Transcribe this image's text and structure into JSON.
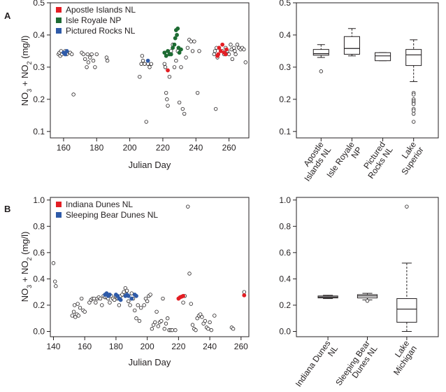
{
  "colors": {
    "apostle": "#e31e24",
    "isle": "#1d6b32",
    "pictured": "#2e5aa8",
    "indiana": "#e31e24",
    "sleeping": "#2e5aa8",
    "other": "#ffffff",
    "outline": "#231f20"
  },
  "panels": {
    "a_label": "A",
    "b_label": "B"
  },
  "chart_data": [
    {
      "id": "A-scatter",
      "type": "scatter",
      "title": "",
      "xlabel": "Julian Day",
      "ylabel_parts": {
        "main": "NO",
        "sub1": "3",
        "mid": " + NO",
        "sub2": "2",
        "unit": " (mg/l)"
      },
      "xlim": [
        152,
        272
      ],
      "ylim": [
        0.08,
        0.5
      ],
      "xticks": [
        160,
        180,
        200,
        220,
        240,
        260
      ],
      "yticks": [
        0.1,
        0.2,
        0.3,
        0.4,
        0.5
      ],
      "legend": [
        "Apostle Islands NL",
        "Isle Royale NP",
        "Pictured Rocks NL"
      ],
      "legend_colors": [
        "#e31e24",
        "#1d6b32",
        "#2e5aa8"
      ],
      "series": [
        {
          "name": "Lake Superior",
          "color": "#ffffff",
          "points": [
            [
              157,
              0.34
            ],
            [
              157.5,
              0.345
            ],
            [
              158,
              0.335
            ],
            [
              158.5,
              0.35
            ],
            [
              159,
              0.34
            ],
            [
              160,
              0.345
            ],
            [
              161,
              0.35
            ],
            [
              162,
              0.34
            ],
            [
              164,
              0.345
            ],
            [
              165,
              0.34
            ],
            [
              166,
              0.215
            ],
            [
              171,
              0.345
            ],
            [
              172,
              0.34
            ],
            [
              173,
              0.325
            ],
            [
              174,
              0.3
            ],
            [
              174.5,
              0.34
            ],
            [
              175,
              0.315
            ],
            [
              176,
              0.33
            ],
            [
              177,
              0.34
            ],
            [
              178,
              0.32
            ],
            [
              179,
              0.3
            ],
            [
              180,
              0.34
            ],
            [
              186,
              0.33
            ],
            [
              186.5,
              0.32
            ],
            [
              206,
              0.27
            ],
            [
              207,
              0.31
            ],
            [
              207.5,
              0.335
            ],
            [
              208,
              0.32
            ],
            [
              209,
              0.31
            ],
            [
              210,
              0.13
            ],
            [
              211,
              0.31
            ],
            [
              212,
              0.3
            ],
            [
              213,
              0.31
            ],
            [
              221,
              0.31
            ],
            [
              221.5,
              0.3
            ],
            [
              222,
              0.22
            ],
            [
              222.5,
              0.2
            ],
            [
              223,
              0.18
            ],
            [
              224,
              0.27
            ],
            [
              225,
              0.35
            ],
            [
              226,
              0.37
            ],
            [
              227,
              0.3
            ],
            [
              228,
              0.32
            ],
            [
              229,
              0.35
            ],
            [
              230,
              0.19
            ],
            [
              231,
              0.3
            ],
            [
              232,
              0.17
            ],
            [
              233,
              0.155
            ],
            [
              234,
              0.33
            ],
            [
              235,
              0.36
            ],
            [
              236,
              0.385
            ],
            [
              237,
              0.38
            ],
            [
              238,
              0.35
            ],
            [
              239,
              0.38
            ],
            [
              241,
              0.22
            ],
            [
              242,
              0.35
            ],
            [
              251,
              0.34
            ],
            [
              251.5,
              0.35
            ],
            [
              252,
              0.17
            ],
            [
              252.5,
              0.36
            ],
            [
              253,
              0.33
            ],
            [
              256,
              0.35
            ],
            [
              257,
              0.34
            ],
            [
              258,
              0.36
            ],
            [
              259,
              0.35
            ],
            [
              260,
              0.34
            ],
            [
              261,
              0.37
            ],
            [
              261.5,
              0.355
            ],
            [
              262,
              0.325
            ],
            [
              263,
              0.36
            ],
            [
              263.5,
              0.35
            ],
            [
              264,
              0.34
            ],
            [
              265,
              0.37
            ],
            [
              266,
              0.36
            ],
            [
              267,
              0.355
            ],
            [
              268,
              0.36
            ],
            [
              269,
              0.355
            ],
            [
              270,
              0.315
            ]
          ]
        },
        {
          "name": "Apostle Islands NL",
          "color": "#e31e24",
          "points": [
            [
              223,
              0.29
            ],
            [
              253,
              0.335
            ],
            [
              253.5,
              0.34
            ],
            [
              254,
              0.36
            ],
            [
              255,
              0.35
            ],
            [
              256,
              0.37
            ],
            [
              257,
              0.345
            ],
            [
              258,
              0.34
            ],
            [
              258.5,
              0.355
            ]
          ]
        },
        {
          "name": "Isle Royale NP",
          "color": "#1d6b32",
          "points": [
            [
              221,
              0.345
            ],
            [
              222,
              0.335
            ],
            [
              223,
              0.35
            ],
            [
              224,
              0.34
            ],
            [
              225,
              0.34
            ],
            [
              226,
              0.36
            ],
            [
              227,
              0.37
            ],
            [
              227.5,
              0.39
            ],
            [
              228,
              0.415
            ],
            [
              228.5,
              0.4
            ],
            [
              229,
              0.42
            ],
            [
              229.5,
              0.36
            ],
            [
              230,
              0.345
            ],
            [
              231,
              0.355
            ]
          ]
        },
        {
          "name": "Pictured Rocks NL",
          "color": "#2e5aa8",
          "points": [
            [
              160,
              0.345
            ],
            [
              161,
              0.34
            ],
            [
              162,
              0.35
            ],
            [
              211,
              0.32
            ]
          ]
        }
      ]
    },
    {
      "id": "A-box",
      "type": "box",
      "ylim": [
        0.08,
        0.5
      ],
      "yticks": [
        0.1,
        0.2,
        0.3,
        0.4,
        0.5
      ],
      "categories": [
        [
          "Apostle",
          "Islands NL"
        ],
        [
          "Isle Royale",
          "NP"
        ],
        [
          "Pictured",
          "Rocks NL"
        ],
        [
          "Lake",
          "Superior"
        ]
      ],
      "boxes": [
        {
          "min": 0.33,
          "q1": 0.337,
          "median": 0.342,
          "q3": 0.355,
          "max": 0.37,
          "outliers": [
            0.287
          ]
        },
        {
          "min": 0.335,
          "q1": 0.34,
          "median": 0.358,
          "q3": 0.395,
          "max": 0.42,
          "outliers": []
        },
        {
          "min": 0.32,
          "q1": 0.32,
          "median": 0.335,
          "q3": 0.345,
          "max": 0.345,
          "outliers": []
        },
        {
          "min": 0.255,
          "q1": 0.305,
          "median": 0.338,
          "q3": 0.355,
          "max": 0.385,
          "outliers": [
            0.22,
            0.215,
            0.2,
            0.195,
            0.19,
            0.185,
            0.17,
            0.165,
            0.155,
            0.13
          ]
        }
      ]
    },
    {
      "id": "B-scatter",
      "type": "scatter",
      "title": "",
      "xlabel": "Julian Day",
      "ylabel_parts": {
        "main": "NO",
        "sub1": "3",
        "mid": " + NO",
        "sub2": "2",
        "unit": " (mg/l)"
      },
      "xlim": [
        138,
        265
      ],
      "ylim": [
        -0.04,
        1.02
      ],
      "xticks": [
        140,
        160,
        180,
        200,
        220,
        240,
        260
      ],
      "yticks": [
        0.0,
        0.2,
        0.4,
        0.6,
        0.8,
        1.0
      ],
      "ytick_labels": [
        "0.0",
        "0.2",
        "0.4",
        "0.6",
        "0.8",
        "1.0"
      ],
      "legend": [
        "Indiana Dunes NL",
        "Sleeping Bear Dunes NL"
      ],
      "legend_colors": [
        "#e31e24",
        "#2e5aa8"
      ],
      "series": [
        {
          "name": "Lake Michigan",
          "color": "#ffffff",
          "points": [
            [
              140,
              0.52
            ],
            [
              141,
              0.38
            ],
            [
              141.5,
              0.345
            ],
            [
              152,
              0.12
            ],
            [
              153,
              0.15
            ],
            [
              153.5,
              0.2
            ],
            [
              154,
              0.11
            ],
            [
              155,
              0.13
            ],
            [
              155.5,
              0.21
            ],
            [
              156,
              0.12
            ],
            [
              157,
              0.18
            ],
            [
              158,
              0.25
            ],
            [
              159,
              0.16
            ],
            [
              160,
              0.15
            ],
            [
              163,
              0.22
            ],
            [
              164,
              0.24
            ],
            [
              165,
              0.25
            ],
            [
              166,
              0.25
            ],
            [
              167,
              0.22
            ],
            [
              168,
              0.25
            ],
            [
              169,
              0.26
            ],
            [
              170,
              0.25
            ],
            [
              171,
              0.2
            ],
            [
              172,
              0.27
            ],
            [
              173,
              0.26
            ],
            [
              174,
              0.26
            ],
            [
              175,
              0.25
            ],
            [
              176,
              0.22
            ],
            [
              177,
              0.27
            ],
            [
              178,
              0.25
            ],
            [
              179,
              0.24
            ],
            [
              180,
              0.27
            ],
            [
              181,
              0.25
            ],
            [
              182,
              0.2
            ],
            [
              183,
              0.27
            ],
            [
              184,
              0.28
            ],
            [
              185,
              0.3
            ],
            [
              186,
              0.33
            ],
            [
              187,
              0.31
            ],
            [
              188,
              0.23
            ],
            [
              189,
              0.2
            ],
            [
              190,
              0.29
            ],
            [
              191,
              0.25
            ],
            [
              192,
              0.16
            ],
            [
              193,
              0.1
            ],
            [
              194,
              0.2
            ],
            [
              195,
              0.08
            ],
            [
              196,
              0.18
            ],
            [
              198,
              0.2
            ],
            [
              199,
              0.25
            ],
            [
              200,
              0.23
            ],
            [
              201,
              0.27
            ],
            [
              202,
              0.28
            ],
            [
              203,
              0.02
            ],
            [
              204,
              0.05
            ],
            [
              205,
              0.07
            ],
            [
              206,
              0.15
            ],
            [
              207,
              0.04
            ],
            [
              208,
              0.07
            ],
            [
              209,
              0.08
            ],
            [
              210,
              0.25
            ],
            [
              211,
              0.02
            ],
            [
              212,
              0.06
            ],
            [
              213,
              0.1
            ],
            [
              214,
              0.01
            ],
            [
              215,
              0.01
            ],
            [
              216,
              0.01
            ],
            [
              218,
              0.01
            ],
            [
              223,
              0.22
            ],
            [
              224,
              0.27
            ],
            [
              226,
              0.95
            ],
            [
              227,
              0.44
            ],
            [
              228,
              0.21
            ],
            [
              229,
              0.05
            ],
            [
              230,
              0.02
            ],
            [
              231,
              0.01
            ],
            [
              232,
              0.1
            ],
            [
              233,
              0.12
            ],
            [
              234,
              0.13
            ],
            [
              235,
              0.11
            ],
            [
              236,
              0.06
            ],
            [
              237,
              0.08
            ],
            [
              238,
              0.03
            ],
            [
              239,
              0.02
            ],
            [
              240,
              0.07
            ],
            [
              241,
              0.01
            ],
            [
              243,
              0.12
            ],
            [
              254,
              0.03
            ],
            [
              255,
              0.02
            ],
            [
              262,
              0.3
            ]
          ]
        },
        {
          "name": "Indiana Dunes NL",
          "color": "#e31e24",
          "points": [
            [
              220,
              0.25
            ],
            [
              221,
              0.26
            ],
            [
              222,
              0.265
            ],
            [
              223,
              0.27
            ],
            [
              262,
              0.275
            ]
          ]
        },
        {
          "name": "Sleeping Bear Dunes NL",
          "color": "#2e5aa8",
          "points": [
            [
              173,
              0.28
            ],
            [
              174,
              0.29
            ],
            [
              175,
              0.27
            ],
            [
              176,
              0.28
            ],
            [
              180,
              0.28
            ],
            [
              181,
              0.27
            ],
            [
              182,
              0.25
            ],
            [
              183,
              0.24
            ],
            [
              186,
              0.27
            ],
            [
              187,
              0.28
            ],
            [
              188,
              0.27
            ],
            [
              190,
              0.25
            ],
            [
              192,
              0.28
            ],
            [
              193,
              0.27
            ]
          ]
        }
      ]
    },
    {
      "id": "B-box",
      "type": "box",
      "ylim": [
        -0.04,
        1.02
      ],
      "yticks": [
        0.0,
        0.2,
        0.4,
        0.6,
        0.8,
        1.0
      ],
      "ytick_labels": [
        "0.0",
        "0.2",
        "0.4",
        "0.6",
        "0.8",
        "1.0"
      ],
      "categories": [
        [
          "Indiana Dunes",
          "NL"
        ],
        [
          "Sleeping Bear",
          "Dunes NL"
        ],
        [
          "Lake",
          "Michigan"
        ]
      ],
      "boxes": [
        {
          "min": 0.25,
          "q1": 0.255,
          "median": 0.262,
          "q3": 0.27,
          "max": 0.275,
          "outliers": []
        },
        {
          "min": 0.24,
          "q1": 0.255,
          "median": 0.27,
          "q3": 0.28,
          "max": 0.29,
          "outliers": [
            0.233
          ]
        },
        {
          "min": 0.0,
          "q1": 0.07,
          "median": 0.17,
          "q3": 0.25,
          "max": 0.52,
          "outliers": [
            0.95
          ]
        }
      ]
    }
  ]
}
